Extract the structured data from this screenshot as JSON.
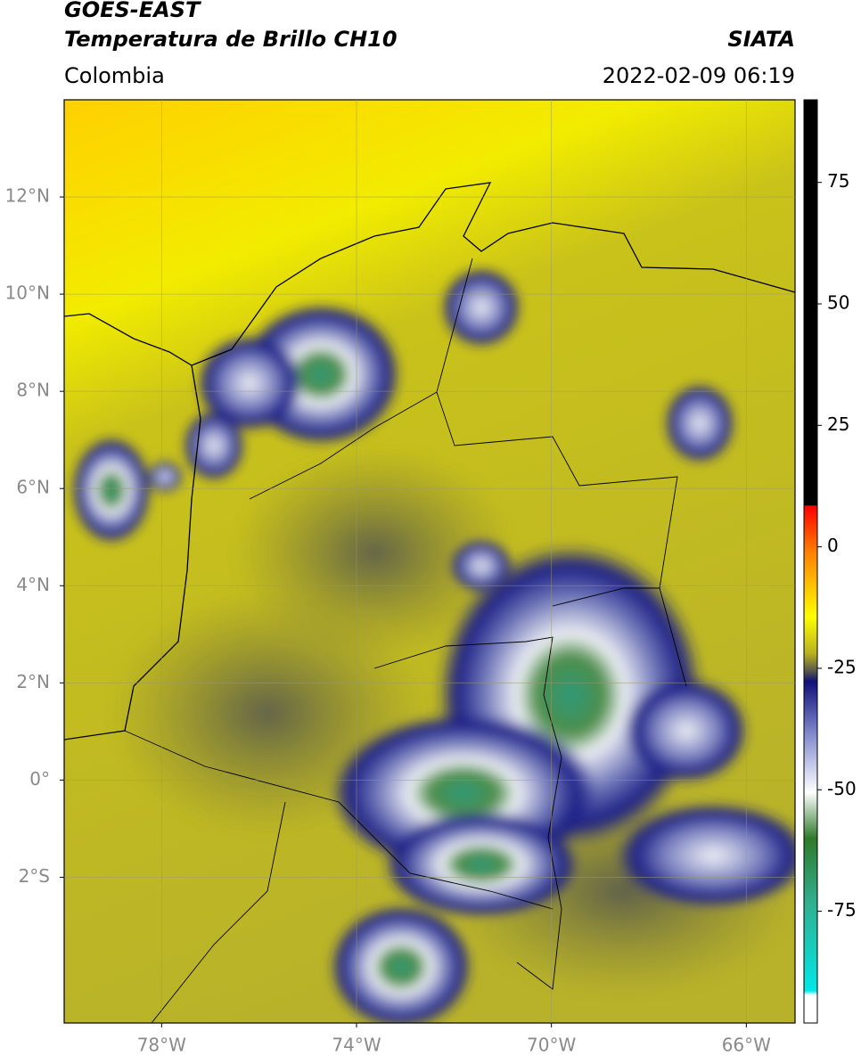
{
  "header": {
    "title": "GOES-EAST",
    "subtitle": "Temperatura de Brillo CH10",
    "region": "Colombia",
    "source": "SIATA",
    "timestamp": "2022-02-09 06:19"
  },
  "map": {
    "lon_range": [
      -80,
      -65
    ],
    "lat_range": [
      -5,
      14
    ],
    "lon_ticks": [
      {
        "value": -78,
        "label": "78°W"
      },
      {
        "value": -74,
        "label": "74°W"
      },
      {
        "value": -70,
        "label": "70°W"
      },
      {
        "value": -66,
        "label": "66°W"
      }
    ],
    "lat_ticks": [
      {
        "value": 12,
        "label": "12°N"
      },
      {
        "value": 10,
        "label": "10°N"
      },
      {
        "value": 8,
        "label": "8°N"
      },
      {
        "value": 6,
        "label": "6°N"
      },
      {
        "value": 4,
        "label": "4°N"
      },
      {
        "value": 2,
        "label": "2°N"
      },
      {
        "value": 0,
        "label": "0°"
      },
      {
        "value": -2,
        "label": "2°S"
      }
    ]
  },
  "colorbar": {
    "range": [
      -98,
      92
    ],
    "ticks": [
      75,
      50,
      25,
      0,
      -25,
      -50,
      -75
    ]
  }
}
